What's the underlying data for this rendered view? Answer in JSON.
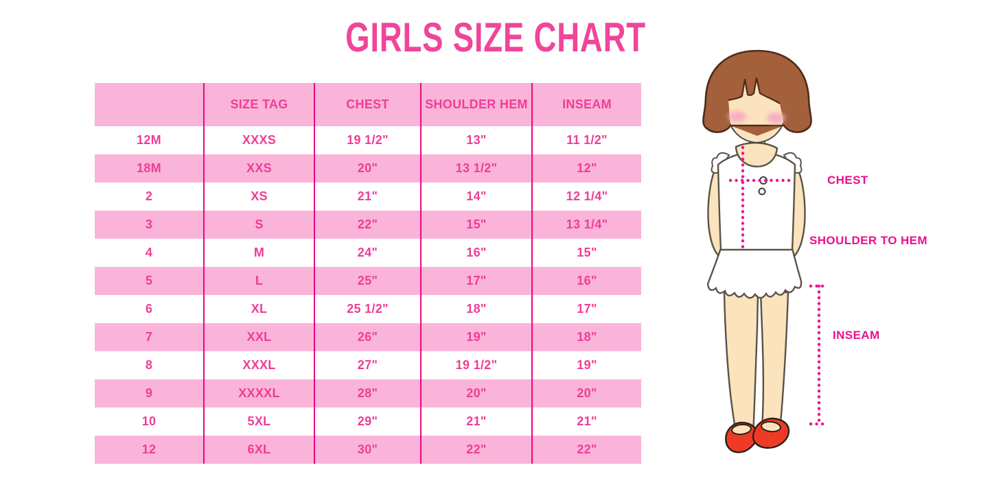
{
  "title": "GIRLS SIZE CHART",
  "chart_data": {
    "type": "table",
    "title": "GIRLS SIZE CHART",
    "columns": [
      "",
      "SIZE TAG",
      "CHEST",
      "SHOULDER HEM",
      "INSEAM"
    ],
    "rows": [
      [
        "12M",
        "XXXS",
        "19 1/2\"",
        "13\"",
        "11 1/2\""
      ],
      [
        "18M",
        "XXS",
        "20\"",
        "13 1/2\"",
        "12\""
      ],
      [
        "2",
        "XS",
        "21\"",
        "14\"",
        "12 1/4\""
      ],
      [
        "3",
        "S",
        "22\"",
        "15\"",
        "13 1/4\""
      ],
      [
        "4",
        "M",
        "24\"",
        "16\"",
        "15\""
      ],
      [
        "5",
        "L",
        "25\"",
        "17\"",
        "16\""
      ],
      [
        "6",
        "XL",
        "25 1/2\"",
        "18\"",
        "17\""
      ],
      [
        "7",
        "XXL",
        "26\"",
        "19\"",
        "18\""
      ],
      [
        "8",
        "XXXL",
        "27\"",
        "19 1/2\"",
        "19\""
      ],
      [
        "9",
        "XXXXL",
        "28\"",
        "20\"",
        "20\""
      ],
      [
        "10",
        "5XL",
        "29\"",
        "21\"",
        "21\""
      ],
      [
        "12",
        "6XL",
        "30\"",
        "22\"",
        "22\""
      ]
    ]
  },
  "figure_labels": {
    "chest": "CHEST",
    "shoulder_to_hem": "SHOULDER TO HEM",
    "inseam": "INSEAM"
  },
  "colors": {
    "title_pink": "#F0459A",
    "table_text_pink": "#EF3D96",
    "row_light_pink": "#FBB4D9",
    "divider_magenta": "#E5087F",
    "measure_dot_magenta": "#EE1390",
    "label_magenta": "#EC0F8C",
    "hair_brown": "#A3603B",
    "skin_tone": "#FBE3BD",
    "shoe_red": "#EE3B26"
  }
}
